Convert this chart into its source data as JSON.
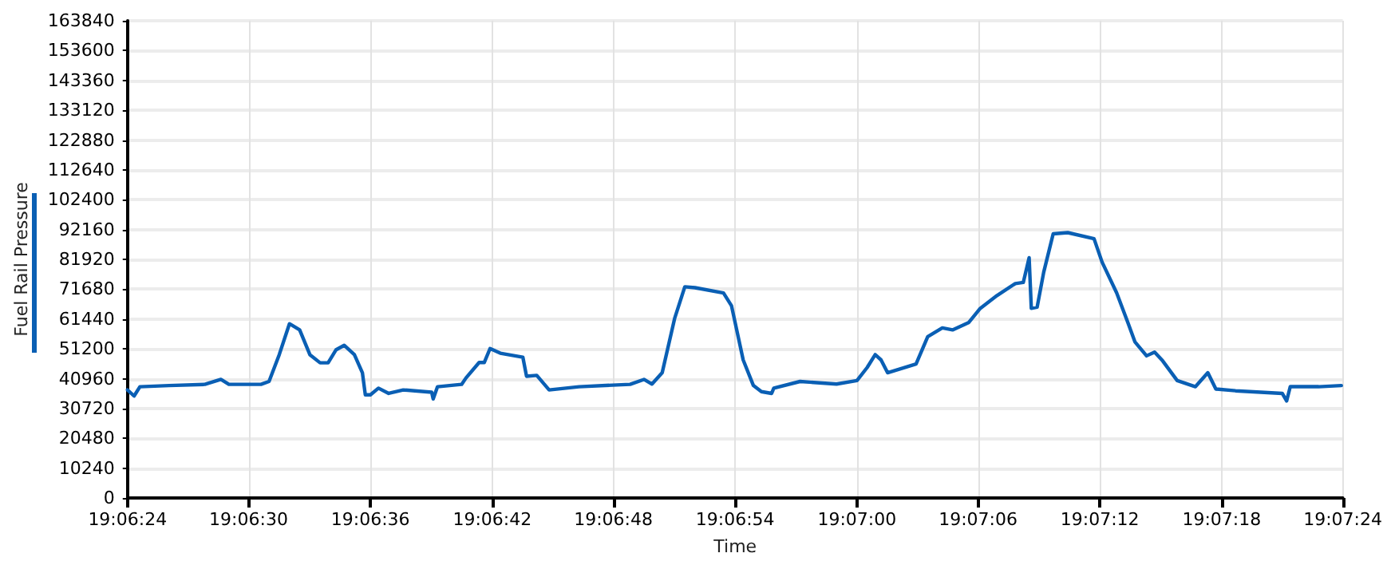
{
  "chart_data": {
    "type": "line",
    "xlabel": "Time",
    "ylabel": "Fuel Rail Pressure",
    "grid": true,
    "marker": "none",
    "line_style": "solid",
    "xlim": [
      19.10667,
      19.12333
    ],
    "xticks": [
      {
        "value": 19.10667,
        "label": "19:06:24"
      },
      {
        "value": 19.10833,
        "label": "19:06:30"
      },
      {
        "value": 19.11,
        "label": "19:06:36"
      },
      {
        "value": 19.11167,
        "label": "19:06:42"
      },
      {
        "value": 19.11333,
        "label": "19:06:48"
      },
      {
        "value": 19.115,
        "label": "19:06:54"
      },
      {
        "value": 19.11667,
        "label": "19:07:00"
      },
      {
        "value": 19.11833,
        "label": "19:07:06"
      },
      {
        "value": 19.12,
        "label": "19:07:12"
      },
      {
        "value": 19.12167,
        "label": "19:07:18"
      },
      {
        "value": 19.12333,
        "label": "19:07:24"
      }
    ],
    "ylim": [
      0,
      163840
    ],
    "yticks": [
      0,
      10240,
      20480,
      30720,
      40960,
      51200,
      61440,
      71680,
      81920,
      92160,
      102400,
      112640,
      122880,
      133120,
      143360,
      153600,
      163840
    ],
    "series": [
      {
        "color": "#0a5fb4",
        "x": [
          19.10667,
          19.10676,
          19.10684,
          19.10724,
          19.10773,
          19.10795,
          19.10806,
          19.1085,
          19.10861,
          19.10875,
          19.10889,
          19.10903,
          19.10917,
          19.10931,
          19.10942,
          19.10953,
          19.10964,
          19.10978,
          19.10989,
          19.10993,
          19.11,
          19.11011,
          19.11025,
          19.11045,
          19.11084,
          19.11086,
          19.11092,
          19.11125,
          19.11131,
          19.11149,
          19.11156,
          19.11164,
          19.11178,
          19.11209,
          19.11214,
          19.11228,
          19.11245,
          19.11286,
          19.11356,
          19.11375,
          19.11386,
          19.114,
          19.11417,
          19.11431,
          19.11445,
          19.11484,
          19.11495,
          19.11511,
          19.11525,
          19.11536,
          19.1155,
          19.11553,
          19.11589,
          19.11639,
          19.11667,
          19.11681,
          19.11692,
          19.117,
          19.11709,
          19.11748,
          19.11764,
          19.11784,
          19.11798,
          19.1182,
          19.11836,
          19.11859,
          19.11884,
          19.11895,
          19.11903,
          19.11906,
          19.11914,
          19.11923,
          19.11936,
          19.11956,
          19.11992,
          19.12003,
          19.12023,
          19.12039,
          19.12048,
          19.12064,
          19.12075,
          19.12086,
          19.12106,
          19.12131,
          19.12148,
          19.12159,
          19.12186,
          19.1225,
          19.12256,
          19.12261,
          19.123,
          19.12331
        ],
        "values": [
          37100,
          35000,
          38200,
          38600,
          39000,
          40700,
          39000,
          39000,
          40000,
          49200,
          59800,
          57700,
          49200,
          46400,
          46400,
          50900,
          52400,
          49200,
          43000,
          35400,
          35400,
          37700,
          35900,
          37100,
          36300,
          34000,
          38200,
          39000,
          41200,
          46500,
          46500,
          51300,
          49700,
          48300,
          41800,
          42100,
          37100,
          38200,
          39000,
          40700,
          39100,
          43000,
          61600,
          72500,
          72200,
          70400,
          66000,
          47400,
          38600,
          36500,
          35900,
          37700,
          40000,
          39100,
          40300,
          44800,
          49200,
          47400,
          43000,
          46000,
          55400,
          58400,
          57700,
          60200,
          65100,
          69500,
          73600,
          74000,
          82500,
          65100,
          65500,
          77500,
          90700,
          91100,
          89000,
          81000,
          70400,
          59800,
          53600,
          48800,
          50100,
          47100,
          40300,
          38200,
          43000,
          37400,
          36800,
          35900,
          33300,
          38200,
          38200,
          38600
        ]
      }
    ]
  }
}
